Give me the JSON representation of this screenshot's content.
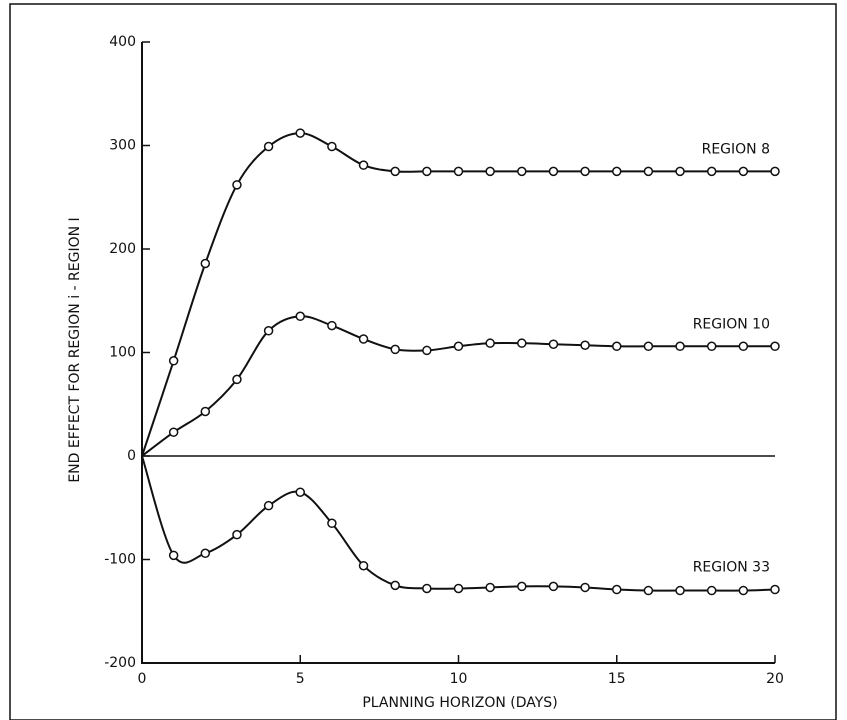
{
  "chart_data": {
    "type": "line",
    "x_label": "PLANNING HORIZON (DAYS)",
    "y_label": "END EFFECT FOR REGION i - REGION I",
    "x": [
      0,
      1,
      2,
      3,
      4,
      5,
      6,
      7,
      8,
      9,
      10,
      11,
      12,
      13,
      14,
      15,
      16,
      17,
      18,
      19,
      20
    ],
    "series": [
      {
        "name": "REGION 8",
        "color": "#111111",
        "values": [
          0,
          92,
          186,
          262,
          299,
          312,
          299,
          281,
          275,
          275,
          275,
          275,
          275,
          275,
          275,
          275,
          275,
          275,
          275,
          275,
          275
        ]
      },
      {
        "name": "REGION 10",
        "color": "#111111",
        "values": [
          0,
          23,
          43,
          74,
          121,
          135,
          126,
          113,
          103,
          102,
          106,
          109,
          109,
          108,
          107,
          106,
          106,
          106,
          106,
          106,
          106
        ]
      },
      {
        "name": "REGION 33",
        "color": "#111111",
        "values": [
          0,
          -96,
          -94,
          -76,
          -48,
          -35,
          -65,
          -106,
          -125,
          -128,
          -128,
          -127,
          -126,
          -126,
          -127,
          -129,
          -130,
          -130,
          -130,
          -130,
          -129
        ]
      }
    ],
    "xlim": [
      0,
      20
    ],
    "xticks": [
      0,
      5,
      10,
      15,
      20
    ],
    "ylim": [
      -200,
      400
    ],
    "yticks": [
      -200,
      -100,
      0,
      100,
      200,
      300,
      400
    ],
    "zero_line": true
  }
}
